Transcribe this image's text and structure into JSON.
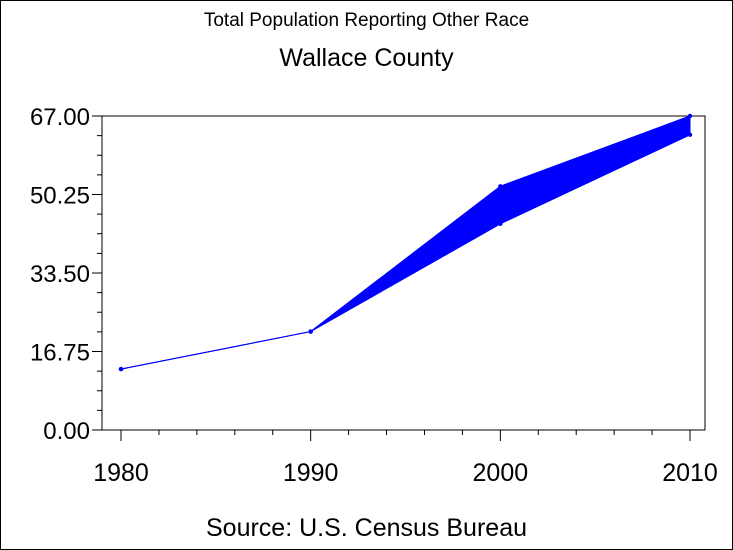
{
  "chart_data": {
    "type": "line",
    "title": "Total Population Reporting Other Race",
    "subtitle": "Wallace County",
    "footnote": "Source: U.S. Census Bureau",
    "xlabel": "",
    "ylabel": "",
    "x": [
      1980,
      1990,
      2000,
      2010
    ],
    "xticks": [
      "1980",
      "1990",
      "2000",
      "2010"
    ],
    "xlim": [
      1980,
      2010
    ],
    "yticks": [
      "0.00",
      "16.75",
      "33.50",
      "50.25",
      "67.00"
    ],
    "ylim": [
      0,
      67
    ],
    "grid": false,
    "legend": "none",
    "color": "#0000ff",
    "series": [
      {
        "values": [
          13,
          21,
          52,
          67
        ]
      },
      {
        "values": [
          13,
          21,
          44,
          63
        ]
      }
    ]
  }
}
